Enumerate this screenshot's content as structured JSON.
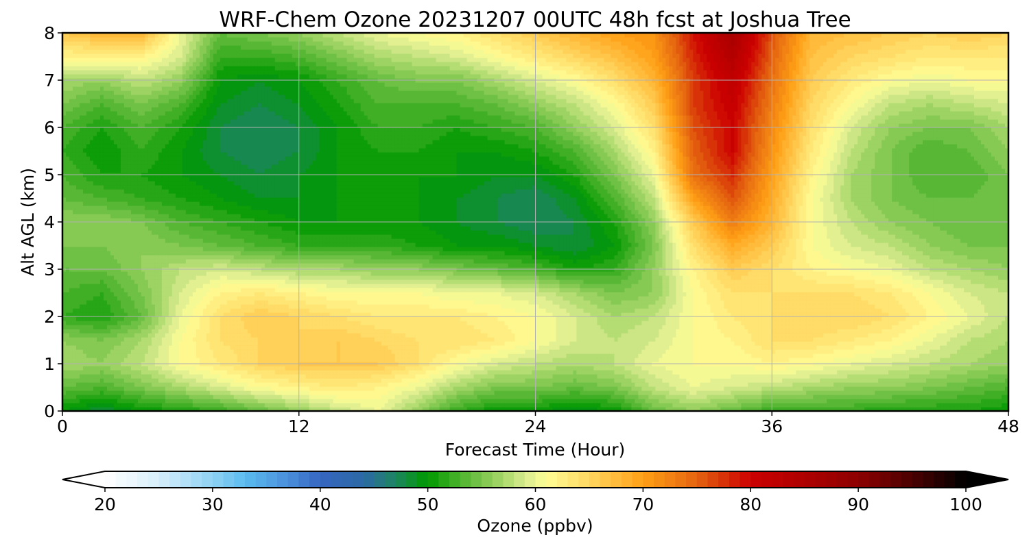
{
  "chart_data": {
    "type": "heatmap",
    "title": "WRF-Chem Ozone  20231207 00UTC 48h fcst at Joshua Tree",
    "xlabel": "Forecast Time (Hour)",
    "ylabel": "Alt AGL (km)",
    "xlim": [
      0,
      48
    ],
    "ylim": [
      0,
      8
    ],
    "xticks": [
      0,
      12,
      24,
      36,
      48
    ],
    "yticks": [
      0,
      1,
      2,
      3,
      4,
      5,
      6,
      7,
      8
    ],
    "grid": true,
    "x_hours": [
      0,
      2,
      4,
      6,
      8,
      10,
      12,
      14,
      16,
      18,
      20,
      22,
      24,
      26,
      28,
      30,
      32,
      34,
      36,
      38,
      40,
      42,
      44,
      46,
      48
    ],
    "y_km": [
      0,
      0.5,
      1,
      1.5,
      2,
      2.5,
      3,
      3.5,
      4,
      4.5,
      5,
      5.5,
      6,
      6.5,
      7,
      7.5,
      8
    ],
    "ozone_ppbv": [
      [
        50,
        48,
        50,
        51,
        52,
        54,
        56,
        58,
        60,
        56,
        52,
        50,
        50,
        49,
        50,
        54,
        56,
        54,
        52,
        52,
        52,
        51,
        51,
        51,
        50
      ],
      [
        54,
        53,
        55,
        57,
        59,
        61,
        62,
        63,
        62,
        60,
        57,
        55,
        55,
        54,
        55,
        58,
        60,
        59,
        58,
        57,
        56,
        56,
        55,
        54,
        53
      ],
      [
        57,
        56,
        58,
        61,
        63,
        65,
        66,
        66,
        66,
        64,
        61,
        59,
        58,
        57,
        58,
        60,
        61,
        61,
        62,
        61,
        60,
        59,
        58,
        57,
        56
      ],
      [
        56,
        55,
        57,
        61,
        64,
        65,
        65,
        66,
        65,
        64,
        64,
        63,
        61,
        59,
        58,
        59,
        61,
        62,
        64,
        64,
        63,
        62,
        60,
        58,
        57
      ],
      [
        52,
        51,
        54,
        60,
        64,
        66,
        65,
        64,
        63,
        63,
        63,
        62,
        61,
        59,
        57,
        58,
        61,
        63,
        64,
        65,
        65,
        64,
        62,
        60,
        58
      ],
      [
        53,
        52,
        55,
        59,
        62,
        63,
        62,
        61,
        61,
        61,
        60,
        60,
        59,
        57,
        55,
        56,
        61,
        64,
        64,
        64,
        64,
        63,
        61,
        59,
        58
      ],
      [
        54,
        54,
        56,
        58,
        59,
        58,
        57,
        57,
        56,
        56,
        55,
        54,
        53,
        51,
        52,
        56,
        62,
        66,
        64,
        62,
        61,
        60,
        58,
        57,
        56
      ],
      [
        55,
        55,
        56,
        55,
        54,
        53,
        52,
        52,
        52,
        51,
        50,
        50,
        49,
        48,
        50,
        55,
        64,
        69,
        66,
        61,
        59,
        58,
        56,
        55,
        55
      ],
      [
        56,
        56,
        55,
        53,
        52,
        51,
        50,
        50,
        50,
        50,
        49,
        48,
        47,
        48,
        51,
        56,
        66,
        73,
        68,
        61,
        58,
        56,
        55,
        54,
        55
      ],
      [
        54,
        53,
        52,
        51,
        50,
        49,
        49,
        50,
        50,
        50,
        49,
        48,
        47,
        49,
        53,
        58,
        70,
        76,
        69,
        61,
        57,
        55,
        54,
        54,
        55
      ],
      [
        53,
        51,
        51,
        50,
        49,
        48,
        49,
        50,
        51,
        50,
        50,
        49,
        49,
        51,
        55,
        60,
        74,
        78,
        70,
        62,
        57,
        55,
        53,
        53,
        55
      ],
      [
        52,
        50,
        52,
        50,
        48,
        47,
        48,
        50,
        51,
        51,
        50,
        50,
        51,
        53,
        57,
        62,
        75,
        80,
        71,
        63,
        58,
        55,
        53,
        54,
        56
      ],
      [
        53,
        51,
        53,
        51,
        48,
        47,
        48,
        50,
        52,
        52,
        51,
        52,
        53,
        56,
        59,
        64,
        76,
        80,
        72,
        64,
        59,
        56,
        55,
        55,
        57
      ],
      [
        55,
        53,
        55,
        53,
        49,
        48,
        49,
        51,
        53,
        53,
        53,
        54,
        56,
        58,
        61,
        66,
        77,
        81,
        73,
        65,
        61,
        58,
        57,
        58,
        59
      ],
      [
        57,
        56,
        58,
        56,
        50,
        49,
        50,
        52,
        54,
        55,
        55,
        57,
        59,
        61,
        64,
        68,
        77,
        82,
        74,
        66,
        63,
        61,
        60,
        61,
        61
      ],
      [
        62,
        62,
        62,
        59,
        52,
        52,
        53,
        55,
        57,
        58,
        59,
        61,
        63,
        65,
        67,
        70,
        78,
        84,
        75,
        67,
        65,
        64,
        63,
        63,
        63
      ],
      [
        66,
        68,
        68,
        60,
        54,
        55,
        56,
        58,
        60,
        61,
        62,
        64,
        66,
        68,
        70,
        71,
        79,
        86,
        76,
        68,
        67,
        66,
        65,
        66,
        65
      ]
    ],
    "colorbar": {
      "label": "Ozone  (ppbv)",
      "min": 20,
      "max": 100,
      "step": 1,
      "ticks": [
        20,
        30,
        40,
        50,
        60,
        70,
        80,
        90,
        100
      ],
      "extend": "both",
      "colors": [
        {
          "value": 20,
          "color": "#ffffff"
        },
        {
          "value": 25,
          "color": "#d6eefb"
        },
        {
          "value": 30,
          "color": "#8fd1f3"
        },
        {
          "value": 33,
          "color": "#5bbcef"
        },
        {
          "value": 37,
          "color": "#4a8fdc"
        },
        {
          "value": 40,
          "color": "#3565c0"
        },
        {
          "value": 44,
          "color": "#2c6aa5"
        },
        {
          "value": 47,
          "color": "#1c8460"
        },
        {
          "value": 50,
          "color": "#009900"
        },
        {
          "value": 53,
          "color": "#4db32e"
        },
        {
          "value": 57,
          "color": "#a8d86a"
        },
        {
          "value": 59,
          "color": "#d8eb8f"
        },
        {
          "value": 61,
          "color": "#fffd96"
        },
        {
          "value": 65,
          "color": "#ffd660"
        },
        {
          "value": 70,
          "color": "#ffa015"
        },
        {
          "value": 75,
          "color": "#e46410"
        },
        {
          "value": 80,
          "color": "#cc0000"
        },
        {
          "value": 90,
          "color": "#8e0000"
        },
        {
          "value": 95,
          "color": "#4a0000"
        },
        {
          "value": 100,
          "color": "#000000"
        }
      ]
    }
  }
}
